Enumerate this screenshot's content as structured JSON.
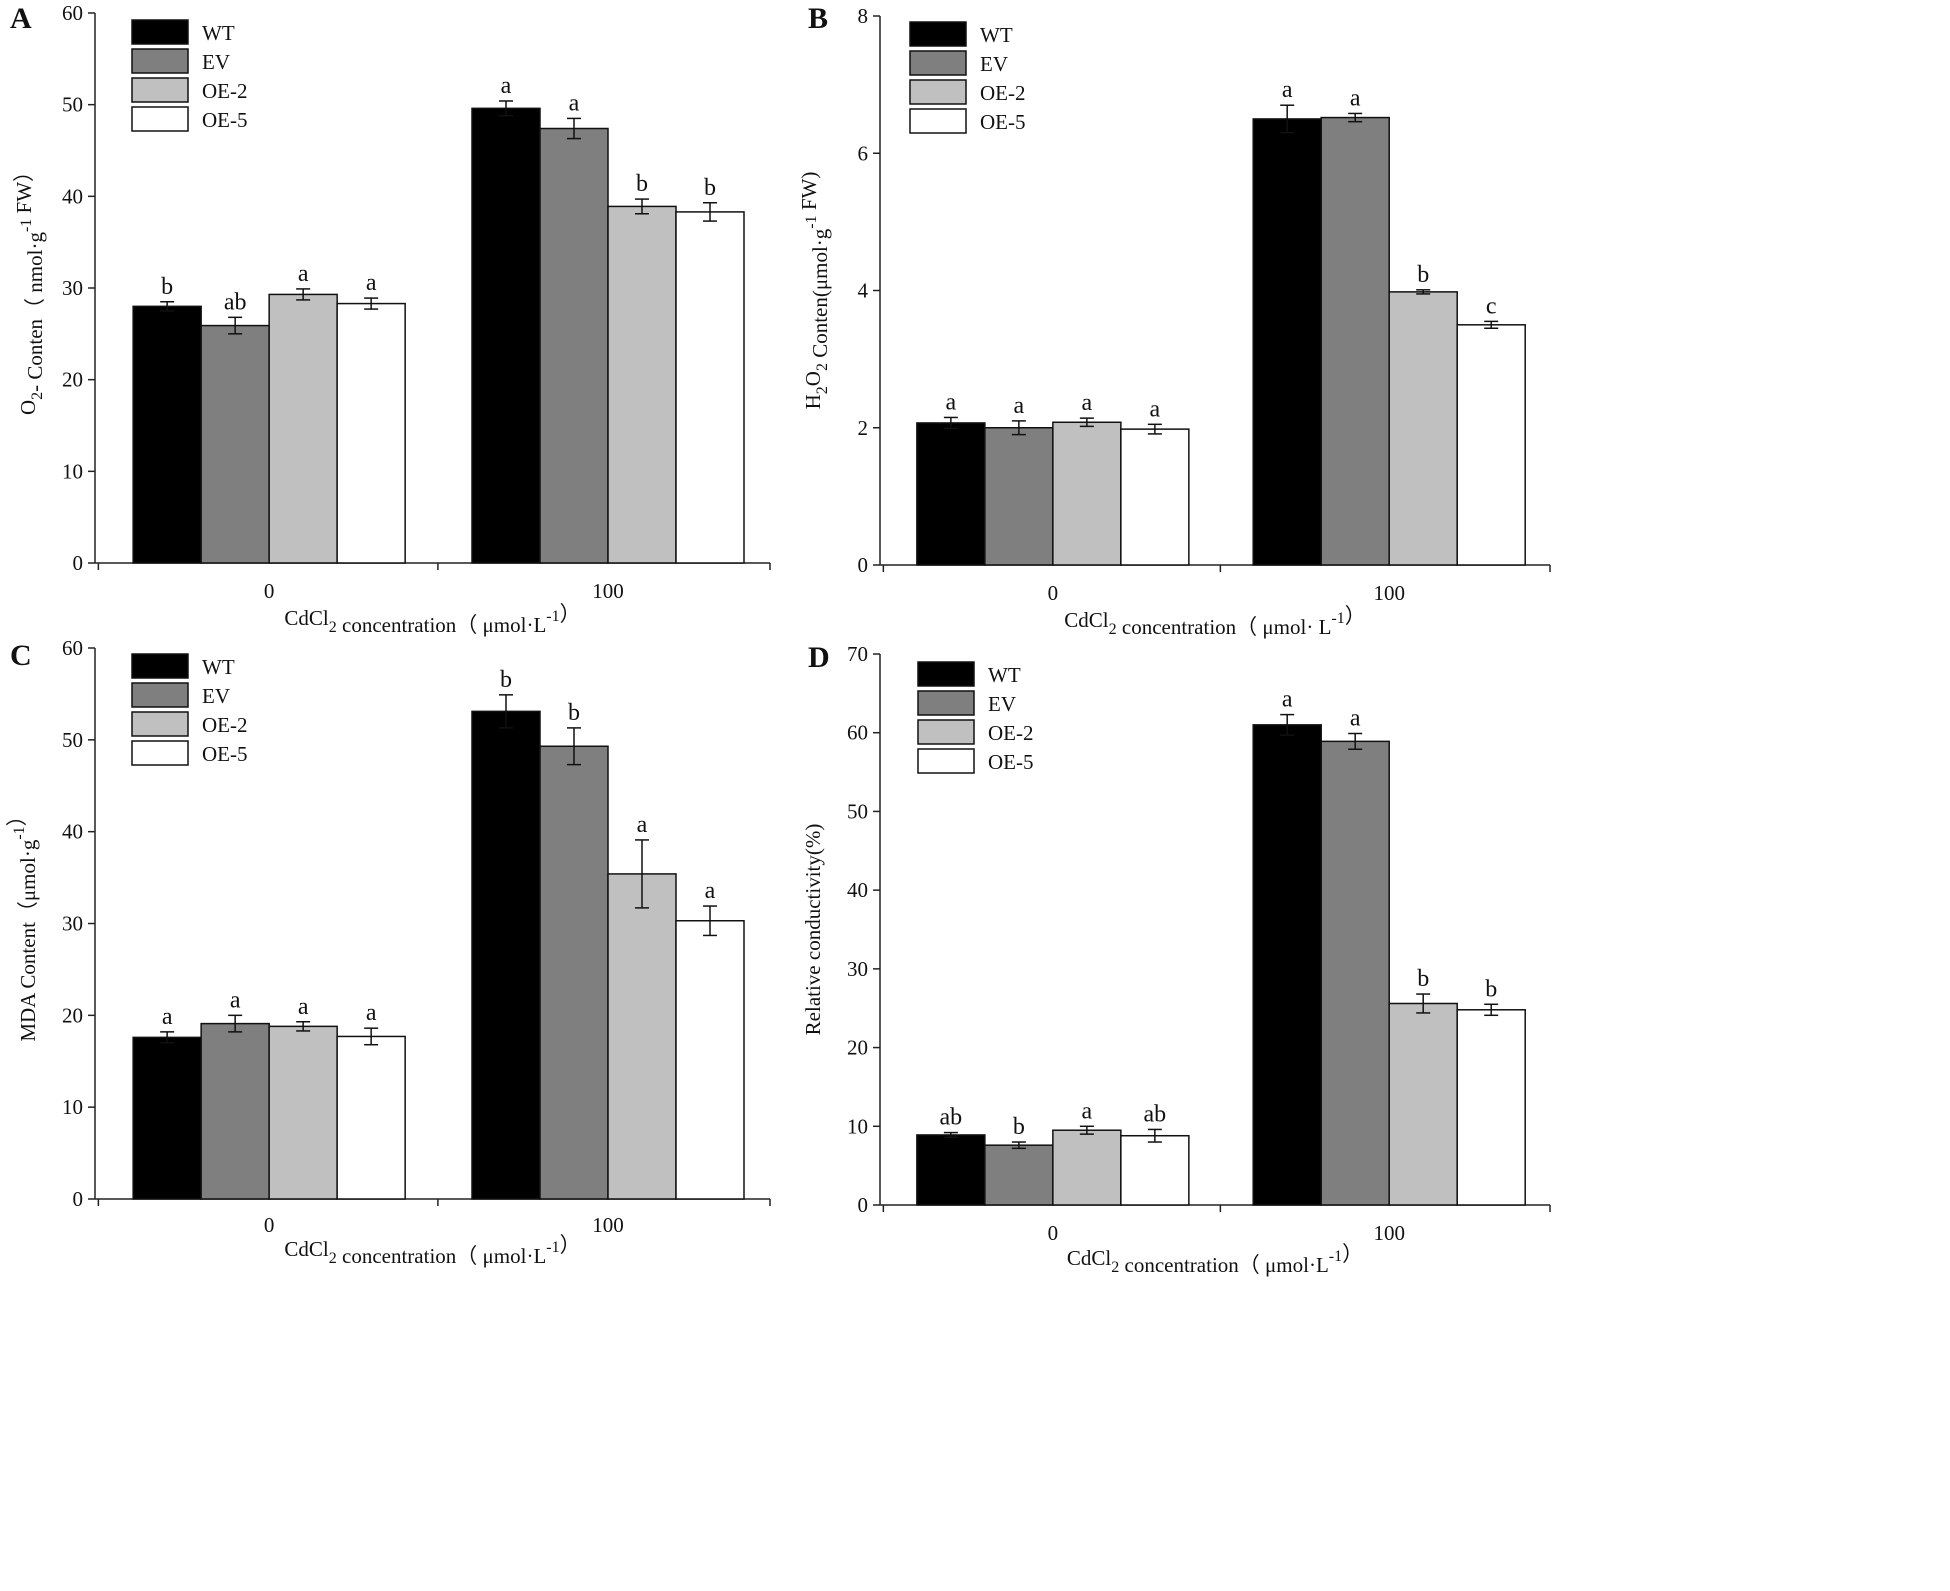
{
  "chart_data": [
    {
      "panel": "A",
      "type": "bar",
      "categories": [
        "0",
        "100"
      ],
      "ylim": [
        0,
        60
      ],
      "yticks": [
        0,
        10,
        20,
        30,
        40,
        50,
        60
      ],
      "ylabel": "O2- Conten（ nmol·g-1 FW）",
      "xlabel": "CdCl2 concentration（ μmol·L-1）",
      "series": [
        {
          "name": "WT",
          "values": [
            28.0,
            49.6
          ],
          "errors": [
            0.5,
            0.8
          ],
          "letters": [
            "b",
            "a"
          ]
        },
        {
          "name": "EV",
          "values": [
            25.9,
            47.4
          ],
          "errors": [
            0.9,
            1.1
          ],
          "letters": [
            "ab",
            "a"
          ]
        },
        {
          "name": "OE-2",
          "values": [
            29.3,
            38.9
          ],
          "errors": [
            0.6,
            0.8
          ],
          "letters": [
            "a",
            "b"
          ]
        },
        {
          "name": "OE-5",
          "values": [
            28.3,
            38.3
          ],
          "errors": [
            0.6,
            1.0
          ],
          "letters": [
            "a",
            "b"
          ]
        }
      ]
    },
    {
      "panel": "B",
      "type": "bar",
      "categories": [
        "0",
        "100"
      ],
      "ylim": [
        0,
        8
      ],
      "yticks": [
        0,
        2,
        4,
        6,
        8
      ],
      "ylabel": "H2O2 Conten(μmol·g-1 FW)",
      "xlabel": "CdCl2 concentration（ μmol· L-1）",
      "series": [
        {
          "name": "WT",
          "values": [
            2.07,
            6.5
          ],
          "errors": [
            0.08,
            0.2
          ],
          "letters": [
            "a",
            "a"
          ]
        },
        {
          "name": "EV",
          "values": [
            2.0,
            6.52
          ],
          "errors": [
            0.1,
            0.06
          ],
          "letters": [
            "a",
            "a"
          ]
        },
        {
          "name": "OE-2",
          "values": [
            2.08,
            3.98
          ],
          "errors": [
            0.06,
            0.03
          ],
          "letters": [
            "a",
            "b"
          ]
        },
        {
          "name": "OE-5",
          "values": [
            1.98,
            3.5
          ],
          "errors": [
            0.07,
            0.05
          ],
          "letters": [
            "a",
            "c"
          ]
        }
      ]
    },
    {
      "panel": "C",
      "type": "bar",
      "categories": [
        "0",
        "100"
      ],
      "ylim": [
        0,
        60
      ],
      "yticks": [
        0,
        10,
        20,
        30,
        40,
        50,
        60
      ],
      "ylabel": "MDA Content（μmol·g-1）",
      "xlabel": "CdCl2 concentration（ μmol·L-1）",
      "series": [
        {
          "name": "WT",
          "values": [
            17.6,
            53.1
          ],
          "errors": [
            0.6,
            1.8
          ],
          "letters": [
            "a",
            "b"
          ]
        },
        {
          "name": "EV",
          "values": [
            19.1,
            49.3
          ],
          "errors": [
            0.9,
            2.0
          ],
          "letters": [
            "a",
            "b"
          ]
        },
        {
          "name": "OE-2",
          "values": [
            18.8,
            35.4
          ],
          "errors": [
            0.5,
            3.7
          ],
          "letters": [
            "a",
            "a"
          ]
        },
        {
          "name": "OE-5",
          "values": [
            17.7,
            30.3
          ],
          "errors": [
            0.9,
            1.6
          ],
          "letters": [
            "a",
            "a"
          ]
        }
      ]
    },
    {
      "panel": "D",
      "type": "bar",
      "categories": [
        "0",
        "100"
      ],
      "ylim": [
        0,
        70
      ],
      "yticks": [
        0,
        10,
        20,
        30,
        40,
        50,
        60,
        70
      ],
      "ylabel": "Relative conductivity(%)",
      "xlabel": "CdCl2 concentration（ μmol·L-1）",
      "series": [
        {
          "name": "WT",
          "values": [
            8.9,
            61.0
          ],
          "errors": [
            0.3,
            1.3
          ],
          "letters": [
            "ab",
            "a"
          ]
        },
        {
          "name": "EV",
          "values": [
            7.6,
            58.9
          ],
          "errors": [
            0.4,
            1.0
          ],
          "letters": [
            "b",
            "a"
          ]
        },
        {
          "name": "OE-2",
          "values": [
            9.5,
            25.6
          ],
          "errors": [
            0.5,
            1.2
          ],
          "letters": [
            "a",
            "b"
          ]
        },
        {
          "name": "OE-5",
          "values": [
            8.8,
            24.8
          ],
          "errors": [
            0.8,
            0.7
          ],
          "letters": [
            "ab",
            "b"
          ]
        }
      ]
    }
  ],
  "colors": {
    "WT": "#000000",
    "EV": "#7f7f7f",
    "OE-2": "#c0c0c0",
    "OE-5": "#ffffff"
  }
}
